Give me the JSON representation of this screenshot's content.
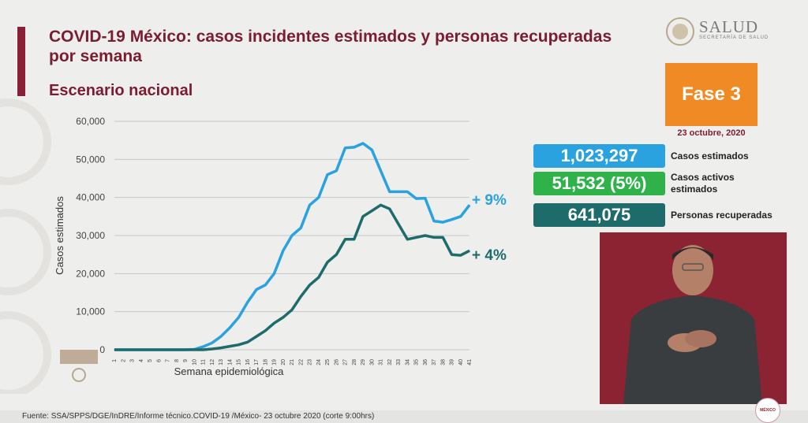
{
  "header": {
    "title": "COVID-19 México: casos incidentes estimados y personas recuperadas por semana",
    "subtitle": "Escenario nacional",
    "logo_text": "SALUD",
    "logo_subtext": "SECRETARÍA DE SALUD"
  },
  "phase": {
    "label": "Fase 3",
    "date": "23 octubre, 2020"
  },
  "stats": [
    {
      "value": "1,023,297",
      "label": "Casos estimados",
      "color": "#2aa2df"
    },
    {
      "value": "51,532 (5%)",
      "label": "Casos activos estimados",
      "color": "#2fb24a"
    },
    {
      "value": "641,075",
      "label": "Personas recuperadas",
      "color": "#1e6b6b"
    }
  ],
  "annotations": {
    "estimated_change": "+ 9%",
    "recovered_change": "+ 4%"
  },
  "footer": {
    "source": "Fuente: SSA/SPPS/DGE/InDRE/Informe técnico.COVID-19 /México- 23 octubre 2020 (corte 9:00hrs)"
  },
  "badge_text": "MÉXICO",
  "colors": {
    "estimated": "#2aa2df",
    "recovered": "#1e6b6b",
    "title": "#7a1d31",
    "phase": "#f08a24"
  },
  "chart_data": {
    "type": "line",
    "title": "",
    "xlabel": "Semana epidemiológica",
    "ylabel": "Casos estimados",
    "ylim": [
      0,
      60000
    ],
    "yticks": [
      0,
      10000,
      20000,
      30000,
      40000,
      50000,
      60000
    ],
    "ytick_labels": [
      "0",
      "10,000",
      "20,000",
      "30,000",
      "40,000",
      "50,000",
      "60,000"
    ],
    "grid": true,
    "x": [
      1,
      2,
      3,
      4,
      5,
      6,
      7,
      8,
      9,
      10,
      11,
      12,
      13,
      14,
      15,
      16,
      17,
      18,
      19,
      20,
      21,
      22,
      23,
      24,
      25,
      26,
      27,
      28,
      29,
      30,
      31,
      32,
      33,
      34,
      35,
      36,
      37,
      38,
      39,
      40,
      41
    ],
    "series": [
      {
        "values": [
          0,
          0,
          0,
          0,
          0,
          0,
          0,
          0,
          0,
          100,
          800,
          1800,
          3500,
          5800,
          8500,
          12500,
          15800,
          17000,
          20000,
          26000,
          30000,
          32000,
          38000,
          40000,
          46000,
          47000,
          53000,
          53200,
          54200,
          52500,
          47000,
          41500,
          41500,
          41500,
          39700,
          39800,
          33800,
          33500,
          34200,
          35000,
          38000
        ]
      },
      {
        "values": [
          0,
          0,
          0,
          0,
          0,
          0,
          0,
          0,
          0,
          0,
          0,
          200,
          500,
          900,
          1300,
          2000,
          3500,
          5000,
          7000,
          8500,
          10500,
          14000,
          17000,
          19000,
          23000,
          25000,
          29000,
          29000,
          35000,
          36500,
          38000,
          37000,
          33000,
          29000,
          29500,
          30000,
          29500,
          29500,
          25000,
          24800,
          26000
        ]
      }
    ]
  }
}
